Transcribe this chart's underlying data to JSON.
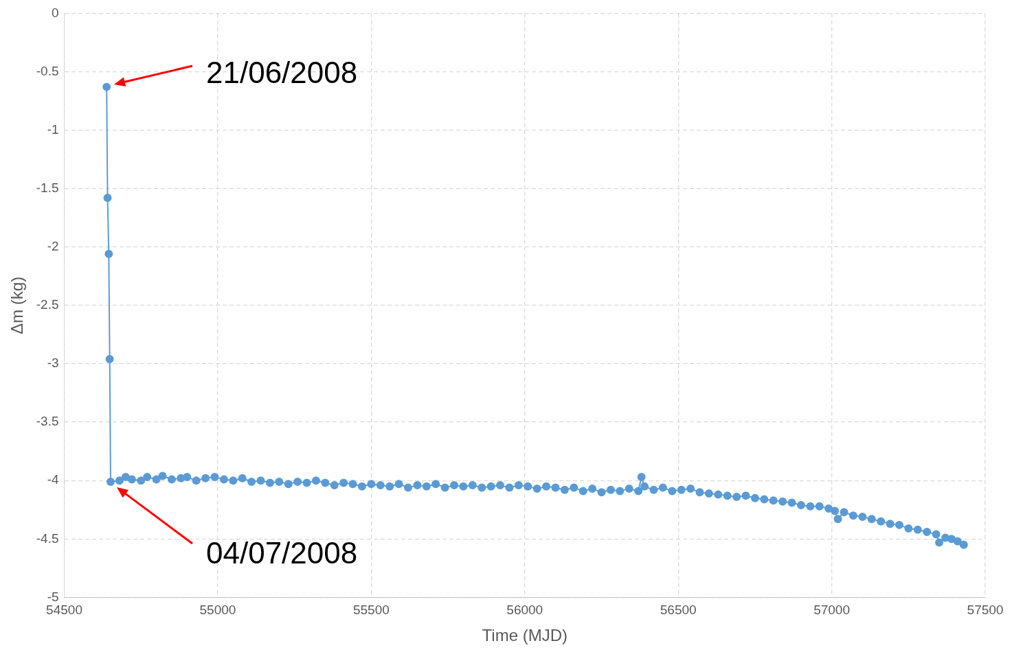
{
  "chart_data": {
    "type": "line",
    "xlabel": "Time (MJD)",
    "ylabel": "Δm (kg)",
    "xlim": [
      54500,
      57500
    ],
    "xticks": [
      54500,
      55000,
      55500,
      56000,
      56500,
      57000,
      57500
    ],
    "ylim": [
      -5,
      0
    ],
    "yticks": [
      -5,
      -4.5,
      -4,
      -3.5,
      -3,
      -2.5,
      -2,
      -1.5,
      -1,
      -0.5,
      0
    ],
    "grid": true,
    "legend": false,
    "marker": "circle",
    "line_style": "solid",
    "annotations": [
      "21/06/2008",
      "04/07/2008"
    ],
    "series": [
      {
        "color": "#5b9bd5",
        "x": [
          54638,
          54641,
          54645,
          54648,
          54651,
          54680,
          54700,
          54720,
          54750,
          54770,
          54800,
          54820,
          54850,
          54880,
          54900,
          54930,
          54960,
          54990,
          55020,
          55050,
          55080,
          55110,
          55140,
          55170,
          55200,
          55230,
          55260,
          55290,
          55320,
          55350,
          55380,
          55410,
          55440,
          55470,
          55500,
          55530,
          55560,
          55590,
          55620,
          55650,
          55680,
          55710,
          55740,
          55770,
          55800,
          55830,
          55860,
          55890,
          55920,
          55950,
          55980,
          56010,
          56040,
          56070,
          56100,
          56130,
          56160,
          56190,
          56220,
          56250,
          56280,
          56310,
          56340,
          56370,
          56380,
          56390,
          56420,
          56450,
          56480,
          56510,
          56540,
          56570,
          56600,
          56630,
          56660,
          56690,
          56720,
          56750,
          56780,
          56810,
          56840,
          56870,
          56900,
          56930,
          56960,
          56990,
          57010,
          57020,
          57040,
          57070,
          57100,
          57130,
          57160,
          57190,
          57220,
          57250,
          57280,
          57310,
          57340,
          57350,
          57370,
          57390,
          57410,
          57430
        ],
        "values": [
          -0.63,
          -1.58,
          -2.06,
          -2.96,
          -4.01,
          -4.0,
          -3.97,
          -3.99,
          -4.0,
          -3.97,
          -3.99,
          -3.96,
          -3.99,
          -3.98,
          -3.97,
          -4.0,
          -3.98,
          -3.97,
          -3.99,
          -4.0,
          -3.98,
          -4.01,
          -4.0,
          -4.02,
          -4.01,
          -4.03,
          -4.01,
          -4.02,
          -4.0,
          -4.02,
          -4.04,
          -4.02,
          -4.03,
          -4.05,
          -4.03,
          -4.04,
          -4.05,
          -4.03,
          -4.06,
          -4.04,
          -4.05,
          -4.03,
          -4.06,
          -4.04,
          -4.05,
          -4.04,
          -4.06,
          -4.05,
          -4.04,
          -4.06,
          -4.04,
          -4.05,
          -4.07,
          -4.05,
          -4.06,
          -4.08,
          -4.06,
          -4.09,
          -4.07,
          -4.1,
          -4.08,
          -4.09,
          -4.07,
          -4.09,
          -3.97,
          -4.05,
          -4.08,
          -4.06,
          -4.09,
          -4.08,
          -4.07,
          -4.1,
          -4.11,
          -4.12,
          -4.13,
          -4.14,
          -4.13,
          -4.15,
          -4.16,
          -4.17,
          -4.18,
          -4.19,
          -4.21,
          -4.22,
          -4.22,
          -4.24,
          -4.26,
          -4.33,
          -4.27,
          -4.3,
          -4.31,
          -4.33,
          -4.35,
          -4.37,
          -4.38,
          -4.41,
          -4.42,
          -4.44,
          -4.46,
          -4.53,
          -4.49,
          -4.5,
          -4.52,
          -4.55
        ]
      }
    ]
  }
}
